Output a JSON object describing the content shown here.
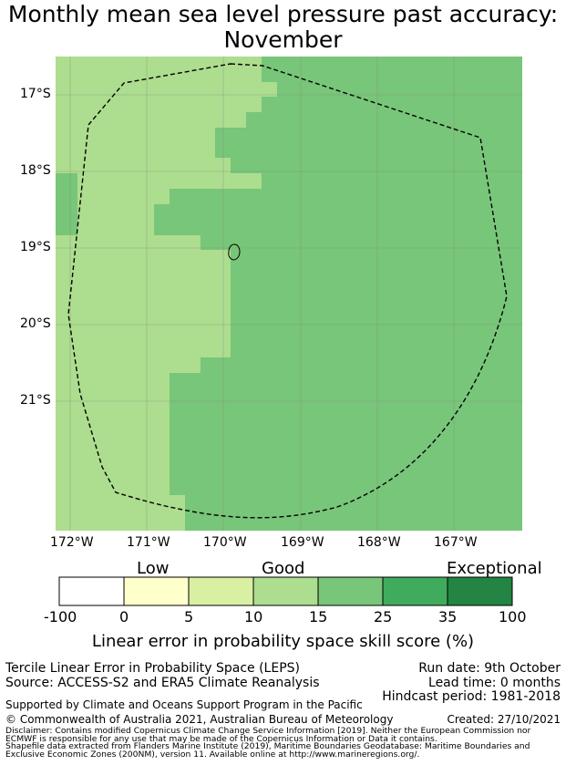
{
  "title": {
    "line1": "Monthly mean sea level pressure past accuracy:",
    "line2": "November"
  },
  "map": {
    "latitude_labels": [
      "17°S",
      "18°S",
      "19°S",
      "20°S",
      "21°S"
    ],
    "longitude_labels": [
      "172°W",
      "171°W",
      "170°W",
      "169°W",
      "168°W",
      "167°W"
    ],
    "colors": {
      "fill_10_15": "#addd8e",
      "fill_15_25": "#78c679",
      "eez_boundary": "#000000",
      "grid": "#808080"
    }
  },
  "colorbar": {
    "category_labels": [
      "Low",
      "Good",
      "Exceptional"
    ],
    "ticks": [
      "-100",
      "0",
      "5",
      "10",
      "15",
      "25",
      "35",
      "100"
    ],
    "colors": [
      "#ffffff",
      "#ffffcc",
      "#d9f0a3",
      "#addd8e",
      "#78c679",
      "#41ab5d",
      "#238443"
    ],
    "title": "Linear error in probability space skill score (%)"
  },
  "info": {
    "line1": "Tercile Linear Error in Probability Space (LEPS)",
    "line2": "Source: ACCESS-S2 and ERA5 Climate Reanalysis",
    "run_date": "Run date: 9th October",
    "lead_time": "Lead time: 0 months",
    "hindcast": "Hindcast period: 1981-2018",
    "support": "Supported by Climate and Oceans Support Program in the Pacific",
    "copyright": "© Commonwealth of Australia 2021, Australian Bureau of Meteorology",
    "created": "Created: 27/10/2021",
    "disclaimer1": "Disclaimer: Contains modified Copernicus Climate Change Service Information [2019]. Neither the European Commission nor",
    "disclaimer2": "ECMWF is responsible for any use that may be made of the Copernicus Information or Data it contains.",
    "shapefile1": "Shapefile data extracted from Flanders Marine Institute (2019), Maritime Boundaries Geodatabase: Maritime Boundaries and",
    "shapefile2": "Exclusive Economic Zones (200NM), version 11. Available online at http://www.marineregions.org/."
  }
}
